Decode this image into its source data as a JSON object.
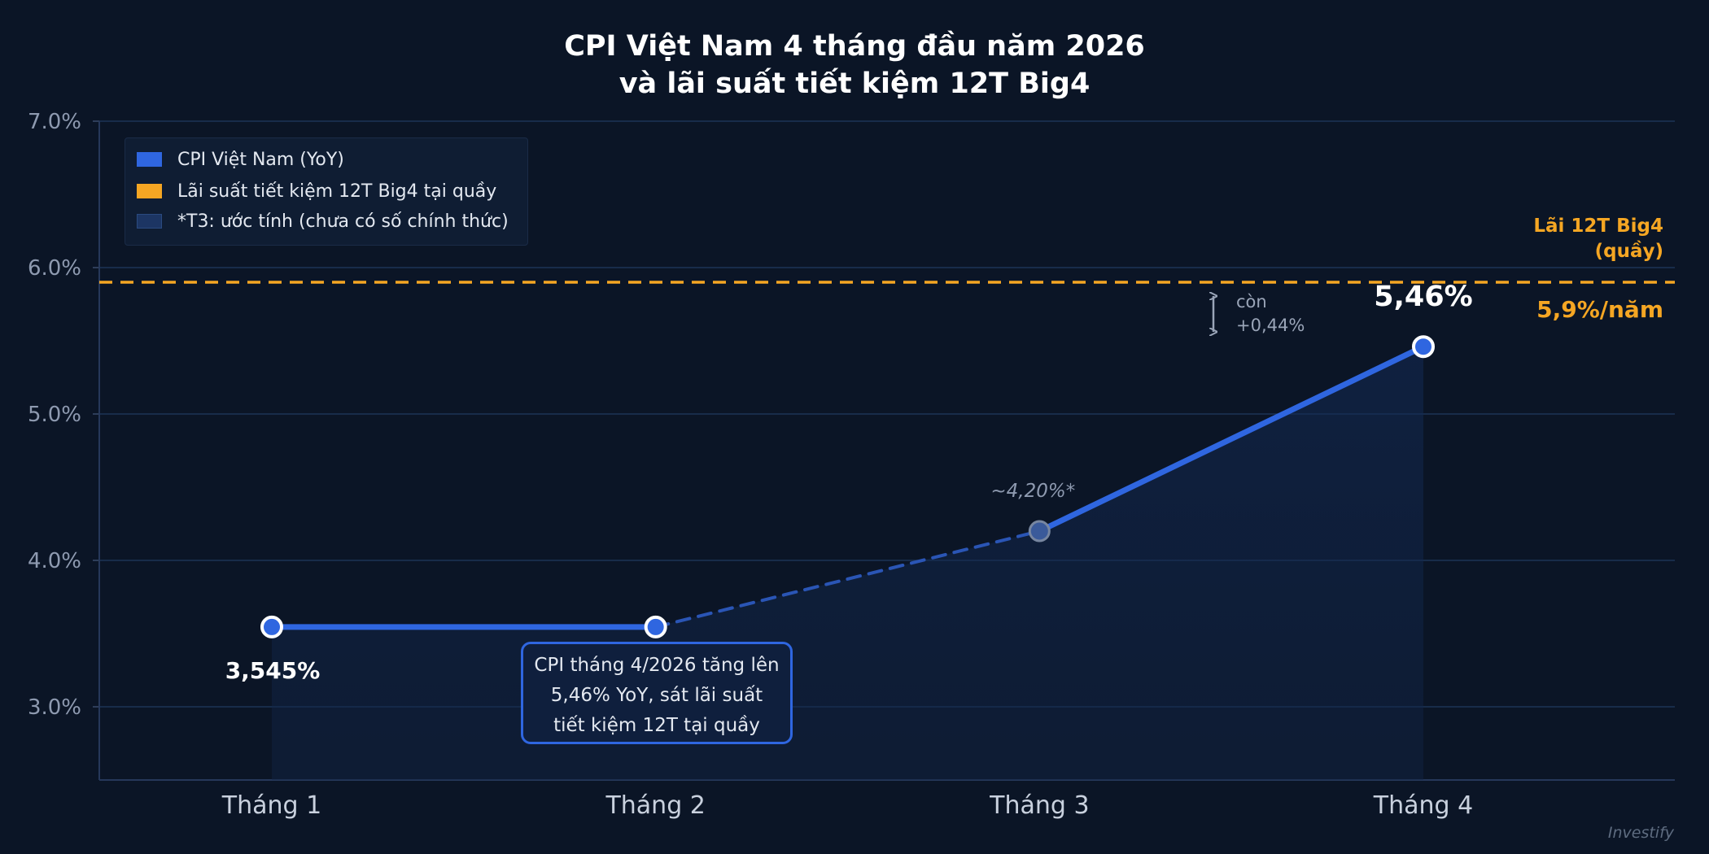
{
  "chart_data": {
    "type": "line",
    "title_lines": [
      "CPI Việt Nam 4 tháng đầu năm 2026",
      "và lãi suất tiết kiệm 12T Big4"
    ],
    "categories": [
      "Tháng 1",
      "Tháng 2",
      "Tháng 3",
      "Tháng 4"
    ],
    "series": [
      {
        "name": "CPI Việt Nam (YoY)",
        "values": [
          3.545,
          3.545,
          4.2,
          5.46
        ],
        "estimated": [
          false,
          false,
          true,
          false
        ],
        "color": "#2f66e0"
      }
    ],
    "reference_line": {
      "name": "Lãi suất tiết kiệm 12T Big4 tại quầy",
      "value": 5.9,
      "color": "#f5a623",
      "style": "dashed",
      "label_lines": [
        "Lãi 12T Big4",
        "(quầy)"
      ],
      "value_label": "5,9%/năm"
    },
    "point_labels": [
      "3,545%",
      "3,545%",
      "~4,20%*",
      "5,46%"
    ],
    "gap_annotation": [
      "còn",
      "+0,44%"
    ],
    "yaxis": {
      "ylim": [
        2.5,
        7.0
      ],
      "ticks": [
        3.0,
        4.0,
        5.0,
        6.0,
        7.0
      ],
      "tick_labels": [
        "3.0%",
        "4.0%",
        "5.0%",
        "6.0%",
        "7.0%"
      ]
    },
    "grid": true,
    "legend": {
      "placement": "top-left",
      "entries": [
        {
          "label": "CPI Việt Nam (YoY)",
          "color": "#2f66e0"
        },
        {
          "label": "Lãi suất tiết kiệm 12T Big4 tại quầy",
          "color": "#f5a623"
        },
        {
          "label": "*T3: ước tính (chưa có số chính thức)",
          "color": "#1c3563"
        }
      ]
    },
    "callout_lines": [
      "CPI tháng 4/2026 tăng lên",
      "5,46% YoY, sát lãi suất",
      "tiết kiệm 12T tại quầy"
    ],
    "watermark": "Investify"
  },
  "colors": {
    "background": "#0b1526",
    "grid": "#1d3557",
    "axis_text": "#8e9ab0",
    "category_text": "#c9d1de",
    "estimate_label": "#8e9ab0"
  }
}
